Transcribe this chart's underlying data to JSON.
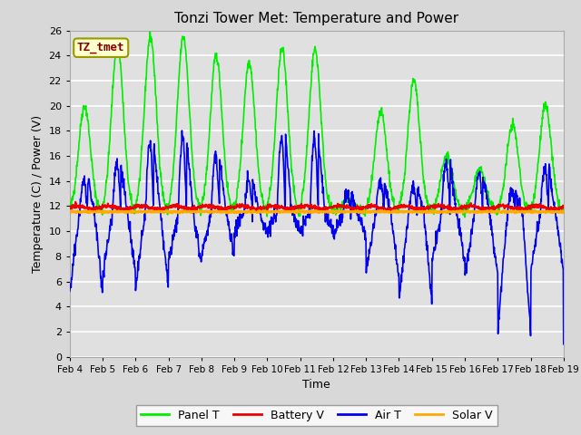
{
  "title": "Tonzi Tower Met: Temperature and Power",
  "xlabel": "Time",
  "ylabel": "Temperature (C) / Power (V)",
  "tz_label": "TZ_tmet",
  "ylim": [
    0,
    26
  ],
  "yticks": [
    0,
    2,
    4,
    6,
    8,
    10,
    12,
    14,
    16,
    18,
    20,
    22,
    24,
    26
  ],
  "xtick_labels": [
    "Feb 4",
    "Feb 5",
    "Feb 6",
    "Feb 7",
    "Feb 8",
    "Feb 9",
    "Feb 10",
    "Feb 11",
    "Feb 12",
    "Feb 13",
    "Feb 14",
    "Feb 15",
    "Feb 16",
    "Feb 17",
    "Feb 18",
    "Feb 19"
  ],
  "fig_bg": "#d8d8d8",
  "plot_bg": "#e0e0e0",
  "grid_color": "#ffffff",
  "colors": {
    "panel_t": "#00ee00",
    "battery_v": "#ee0000",
    "air_t": "#0000ee",
    "solar_v": "#ffaa00"
  },
  "legend_labels": [
    "Panel T",
    "Battery V",
    "Air T",
    "Solar V"
  ]
}
